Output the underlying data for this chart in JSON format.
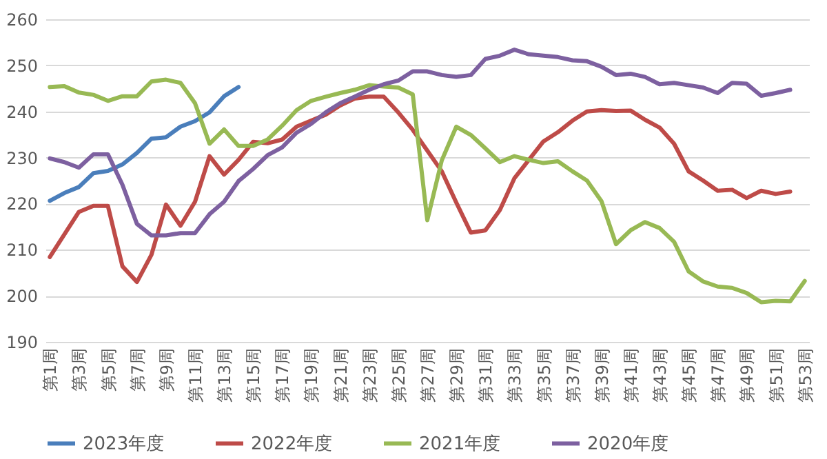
{
  "chart_data": {
    "type": "line",
    "categories": [
      "第1周",
      null,
      "第3周",
      null,
      "第5周",
      null,
      "第7周",
      null,
      "第9周",
      null,
      "第11周",
      null,
      "第13周",
      null,
      "第15周",
      null,
      "第17周",
      null,
      "第19周",
      null,
      "第21周",
      null,
      "第23周",
      null,
      "第25周",
      null,
      "第27周",
      null,
      "第29周",
      null,
      "第31周",
      null,
      "第33周",
      null,
      "第35周",
      null,
      "第37周",
      null,
      "第39周",
      null,
      "第41周",
      null,
      "第43周",
      null,
      "第45周",
      null,
      "第47周",
      null,
      "第49周",
      null,
      "第51周",
      null,
      "第53周"
    ],
    "series": [
      {
        "name": "2023年度",
        "color": "#4a7ebb",
        "values": [
          220.6,
          222.3,
          223.6,
          226.6,
          227.1,
          228.5,
          231,
          234.1,
          234.4,
          236.7,
          237.9,
          239.8,
          243.3,
          245.3,
          null,
          null,
          null,
          null,
          null,
          null,
          null,
          null,
          null,
          null,
          null,
          null,
          null,
          null,
          null,
          null,
          null,
          null,
          null,
          null,
          null,
          null,
          null,
          null,
          null,
          null,
          null,
          null,
          null,
          null,
          null,
          null,
          null,
          null,
          null,
          null,
          null,
          null,
          null
        ]
      },
      {
        "name": "2022年度",
        "color": "#be4b48",
        "values": [
          208.4,
          213.3,
          218.2,
          219.5,
          219.5,
          206.4,
          203,
          208.9,
          219.8,
          215.2,
          220.4,
          230.3,
          226.3,
          229.5,
          233.4,
          233.1,
          233.9,
          236.7,
          238,
          239.3,
          241.3,
          242.8,
          243.2,
          243.2,
          239.8,
          236,
          231.5,
          227,
          220.2,
          213.7,
          214.2,
          218.6,
          225.5,
          229.5,
          233.5,
          235.5,
          238,
          240,
          240.3,
          240.1,
          240.2,
          238.2,
          236.5,
          233,
          227,
          225,
          222.8,
          223,
          221.2,
          222.8,
          222.1,
          222.6,
          null
        ]
      },
      {
        "name": "2021年度",
        "color": "#98b954",
        "values": [
          245.3,
          245.5,
          244.1,
          243.6,
          242.3,
          243.3,
          243.3,
          246.5,
          246.9,
          246.2,
          241.8,
          233,
          236.1,
          232.5,
          232.5,
          233.9,
          236.9,
          240.3,
          242.3,
          243.2,
          244,
          244.7,
          245.7,
          245.4,
          245.2,
          243.7,
          216.4,
          229.4,
          236.7,
          234.9,
          232,
          229,
          230.3,
          229.5,
          228.8,
          229.2,
          227,
          225,
          220.5,
          211.2,
          214.2,
          216,
          214.7,
          211.7,
          205.3,
          203.1,
          202,
          201.7,
          200.6,
          198.6,
          198.9,
          198.8,
          203.2
        ]
      },
      {
        "name": "2020年度",
        "color": "#7d60a0",
        "values": [
          229.8,
          229,
          227.8,
          230.7,
          230.7,
          224.1,
          215.6,
          213.1,
          213.1,
          213.6,
          213.6,
          217.7,
          220.4,
          224.9,
          227.5,
          230.5,
          232.2,
          235.4,
          237.3,
          239.8,
          241.8,
          243.2,
          244.7,
          245.9,
          246.7,
          248.7,
          248.7,
          247.9,
          247.5,
          247.9,
          251.4,
          252.1,
          253.4,
          252.4,
          252.1,
          251.8,
          251.1,
          250.9,
          249.7,
          247.9,
          248.2,
          247.5,
          245.9,
          246.2,
          245.7,
          245.2,
          244,
          246.2,
          246,
          243.4,
          244,
          244.7,
          null
        ]
      }
    ],
    "ylim": [
      190,
      260
    ],
    "yticks": [
      190,
      200,
      210,
      220,
      230,
      240,
      250,
      260
    ],
    "grid": "y",
    "legend": "bottom",
    "marker": "none",
    "line_style": "solid"
  }
}
